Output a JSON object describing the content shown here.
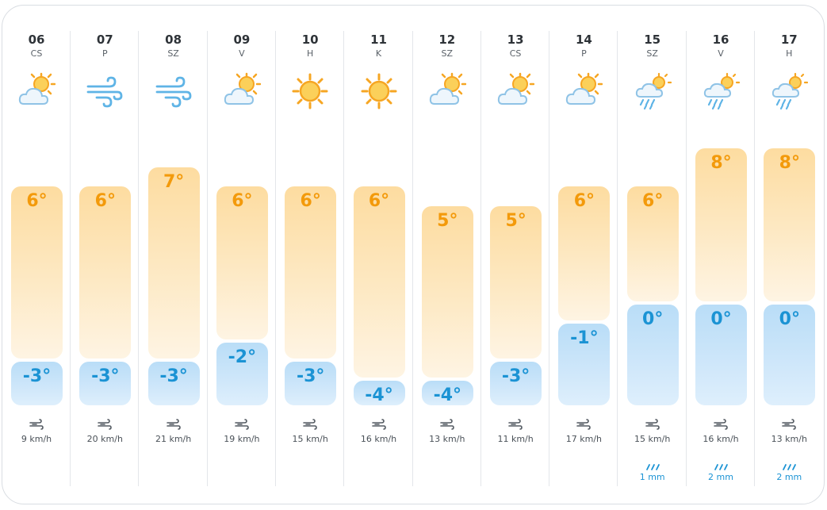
{
  "days": [
    {
      "date": "06",
      "weekday": "CS",
      "icon": "partly-cloudy-sun-icon",
      "max": "6°",
      "min": "-3°",
      "max_value": 6,
      "min_value": -3,
      "wind": "9 km/h",
      "rain": ""
    },
    {
      "date": "07",
      "weekday": "P",
      "icon": "wind-icon",
      "max": "6°",
      "min": "-3°",
      "max_value": 6,
      "min_value": -3,
      "wind": "20 km/h",
      "rain": ""
    },
    {
      "date": "08",
      "weekday": "SZ",
      "icon": "wind-icon",
      "max": "7°",
      "min": "-3°",
      "max_value": 7,
      "min_value": -3,
      "wind": "21 km/h",
      "rain": ""
    },
    {
      "date": "09",
      "weekday": "V",
      "icon": "partly-cloudy-sun-icon",
      "max": "6°",
      "min": "-2°",
      "max_value": 6,
      "min_value": -2,
      "wind": "19 km/h",
      "rain": ""
    },
    {
      "date": "10",
      "weekday": "H",
      "icon": "sun-icon",
      "max": "6°",
      "min": "-3°",
      "max_value": 6,
      "min_value": -3,
      "wind": "15 km/h",
      "rain": ""
    },
    {
      "date": "11",
      "weekday": "K",
      "icon": "sun-icon",
      "max": "6°",
      "min": "-4°",
      "max_value": 6,
      "min_value": -4,
      "wind": "16 km/h",
      "rain": ""
    },
    {
      "date": "12",
      "weekday": "SZ",
      "icon": "partly-cloudy-sun-icon",
      "max": "5°",
      "min": "-4°",
      "max_value": 5,
      "min_value": -4,
      "wind": "13 km/h",
      "rain": ""
    },
    {
      "date": "13",
      "weekday": "CS",
      "icon": "partly-cloudy-sun-icon",
      "max": "5°",
      "min": "-3°",
      "max_value": 5,
      "min_value": -3,
      "wind": "11 km/h",
      "rain": ""
    },
    {
      "date": "14",
      "weekday": "P",
      "icon": "partly-cloudy-sun-icon",
      "max": "6°",
      "min": "-1°",
      "max_value": 6,
      "min_value": -1,
      "wind": "17 km/h",
      "rain": ""
    },
    {
      "date": "15",
      "weekday": "SZ",
      "icon": "rain-sun-icon",
      "max": "6°",
      "min": "0°",
      "max_value": 6,
      "min_value": 0,
      "wind": "15 km/h",
      "rain": "1 mm"
    },
    {
      "date": "16",
      "weekday": "V",
      "icon": "rain-sun-icon",
      "max": "8°",
      "min": "0°",
      "max_value": 8,
      "min_value": 0,
      "wind": "16 km/h",
      "rain": "2 mm"
    },
    {
      "date": "17",
      "weekday": "H",
      "icon": "rain-sun-icon",
      "max": "8°",
      "min": "0°",
      "max_value": 8,
      "min_value": 0,
      "wind": "13 km/h",
      "rain": "2 mm"
    }
  ],
  "colors": {
    "max": "#f39a0b",
    "min": "#1b93d4",
    "max_bg": "#fddca0",
    "min_bg": "#b9ddf7"
  }
}
